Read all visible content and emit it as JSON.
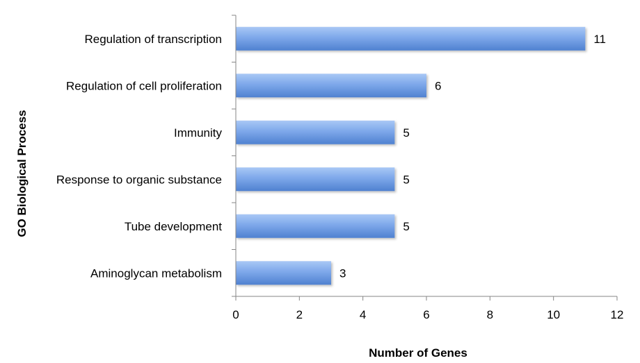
{
  "chart_data": {
    "type": "bar",
    "orientation": "horizontal",
    "categories": [
      "Regulation of transcription",
      "Regulation of cell proliferation",
      "Immunity",
      "Response to organic substance",
      "Tube development",
      "Aminoglycan metabolism"
    ],
    "values": [
      11,
      6,
      5,
      5,
      5,
      3
    ],
    "title": "",
    "xlabel": "Number of Genes",
    "ylabel": "GO Biological Process",
    "xlim": [
      0,
      12
    ],
    "xticks": [
      0,
      2,
      4,
      6,
      8,
      10,
      12
    ],
    "grid": false,
    "legend": "none",
    "data_labels": true,
    "colors": {
      "bar_light": "#a9c8f5",
      "bar_mid": "#7ea8ea",
      "bar_dark": "#4f81d0",
      "axis": "#868686"
    }
  }
}
